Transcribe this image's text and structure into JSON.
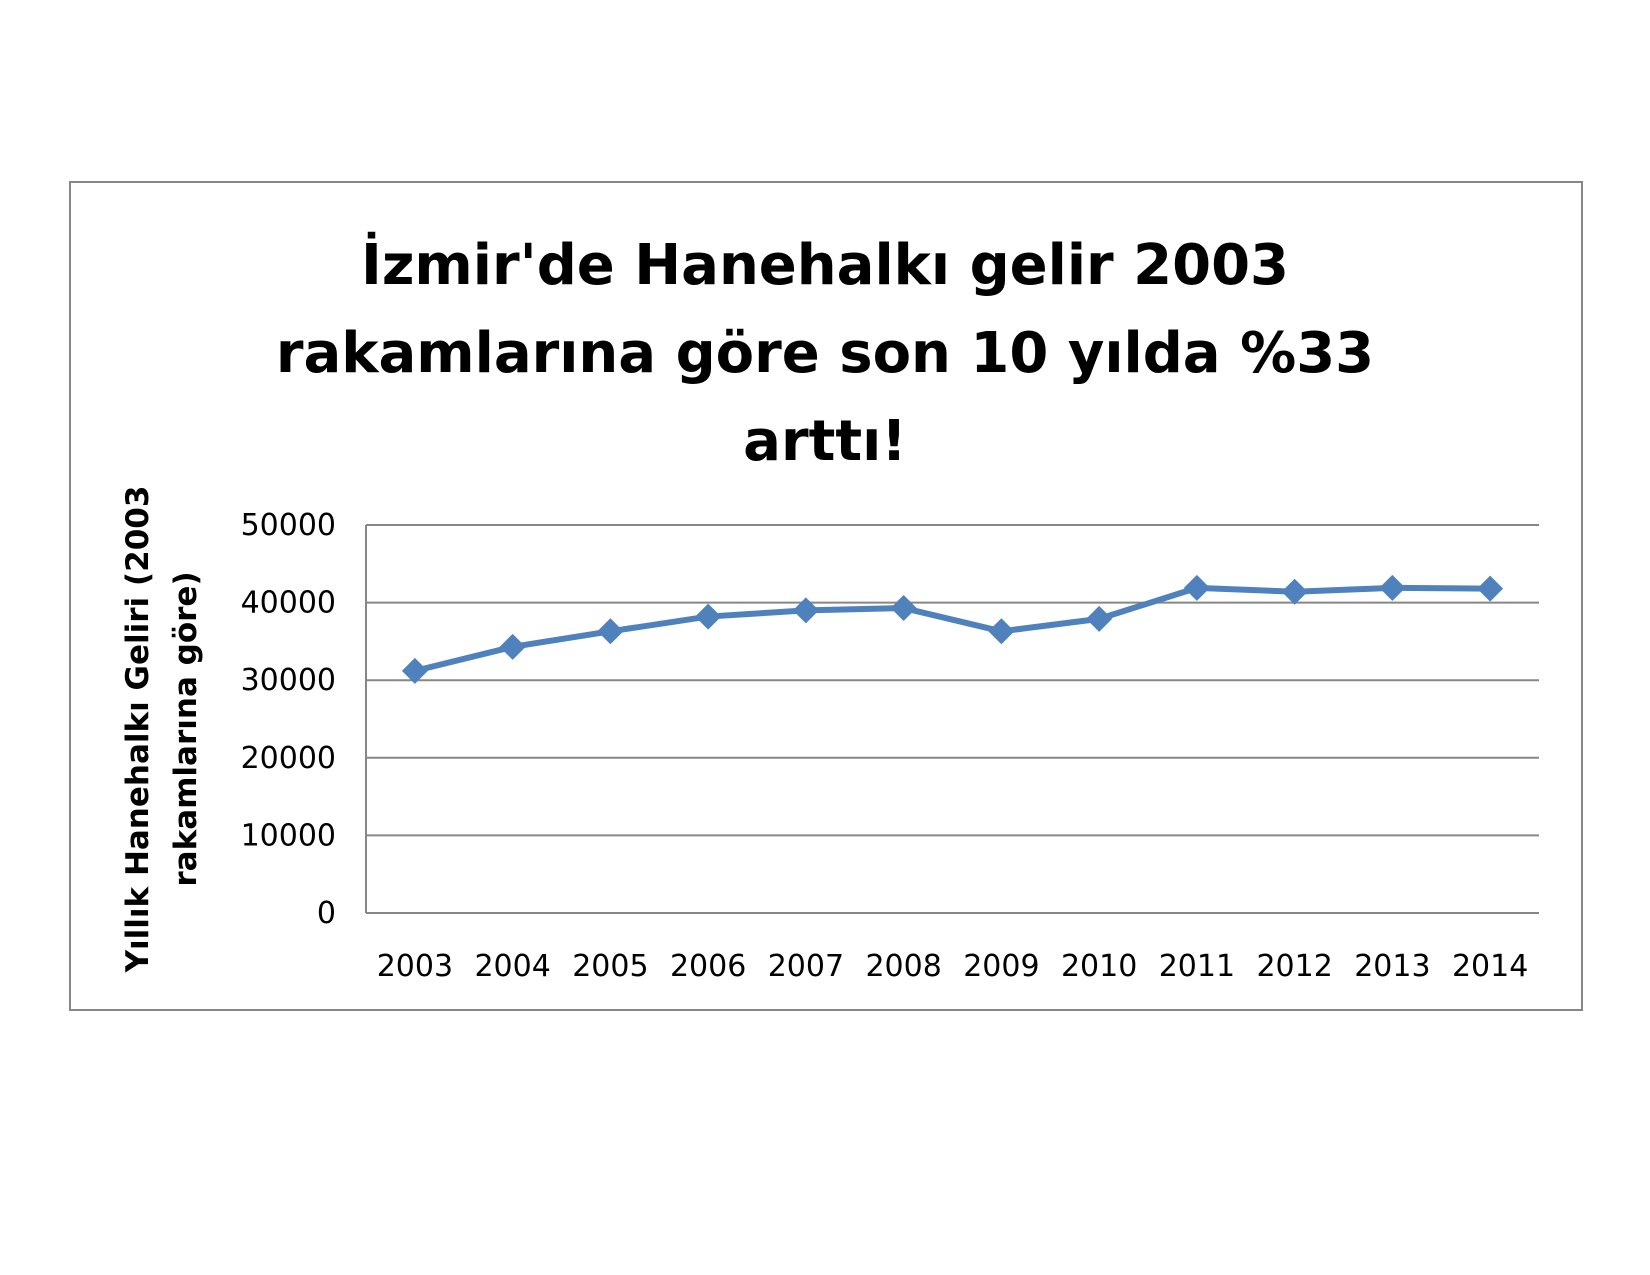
{
  "chart_data": {
    "type": "line",
    "title_lines": [
      "İzmir'de Hanehalkı gelir 2003",
      "rakamlarına göre son 10 yılda %33",
      "arttı!"
    ],
    "xlabel": "",
    "ylabel_lines": [
      "Yıllık Hanehalkı Geliri (2003",
      "rakamlarına göre)"
    ],
    "categories": [
      "2003",
      "2004",
      "2005",
      "2006",
      "2007",
      "2008",
      "2009",
      "2010",
      "2011",
      "2012",
      "2013",
      "2014"
    ],
    "series": [
      {
        "values": [
          31200,
          34300,
          36300,
          38200,
          39000,
          39300,
          36300,
          37900,
          41900,
          41400,
          41900,
          41800
        ],
        "color": "#4F81BD",
        "marker": "diamond"
      }
    ],
    "ylim": [
      0,
      50000
    ],
    "yticks": [
      "0",
      "10000",
      "20000",
      "30000",
      "40000",
      "50000"
    ],
    "grid": "horizontal",
    "legend": "none"
  }
}
